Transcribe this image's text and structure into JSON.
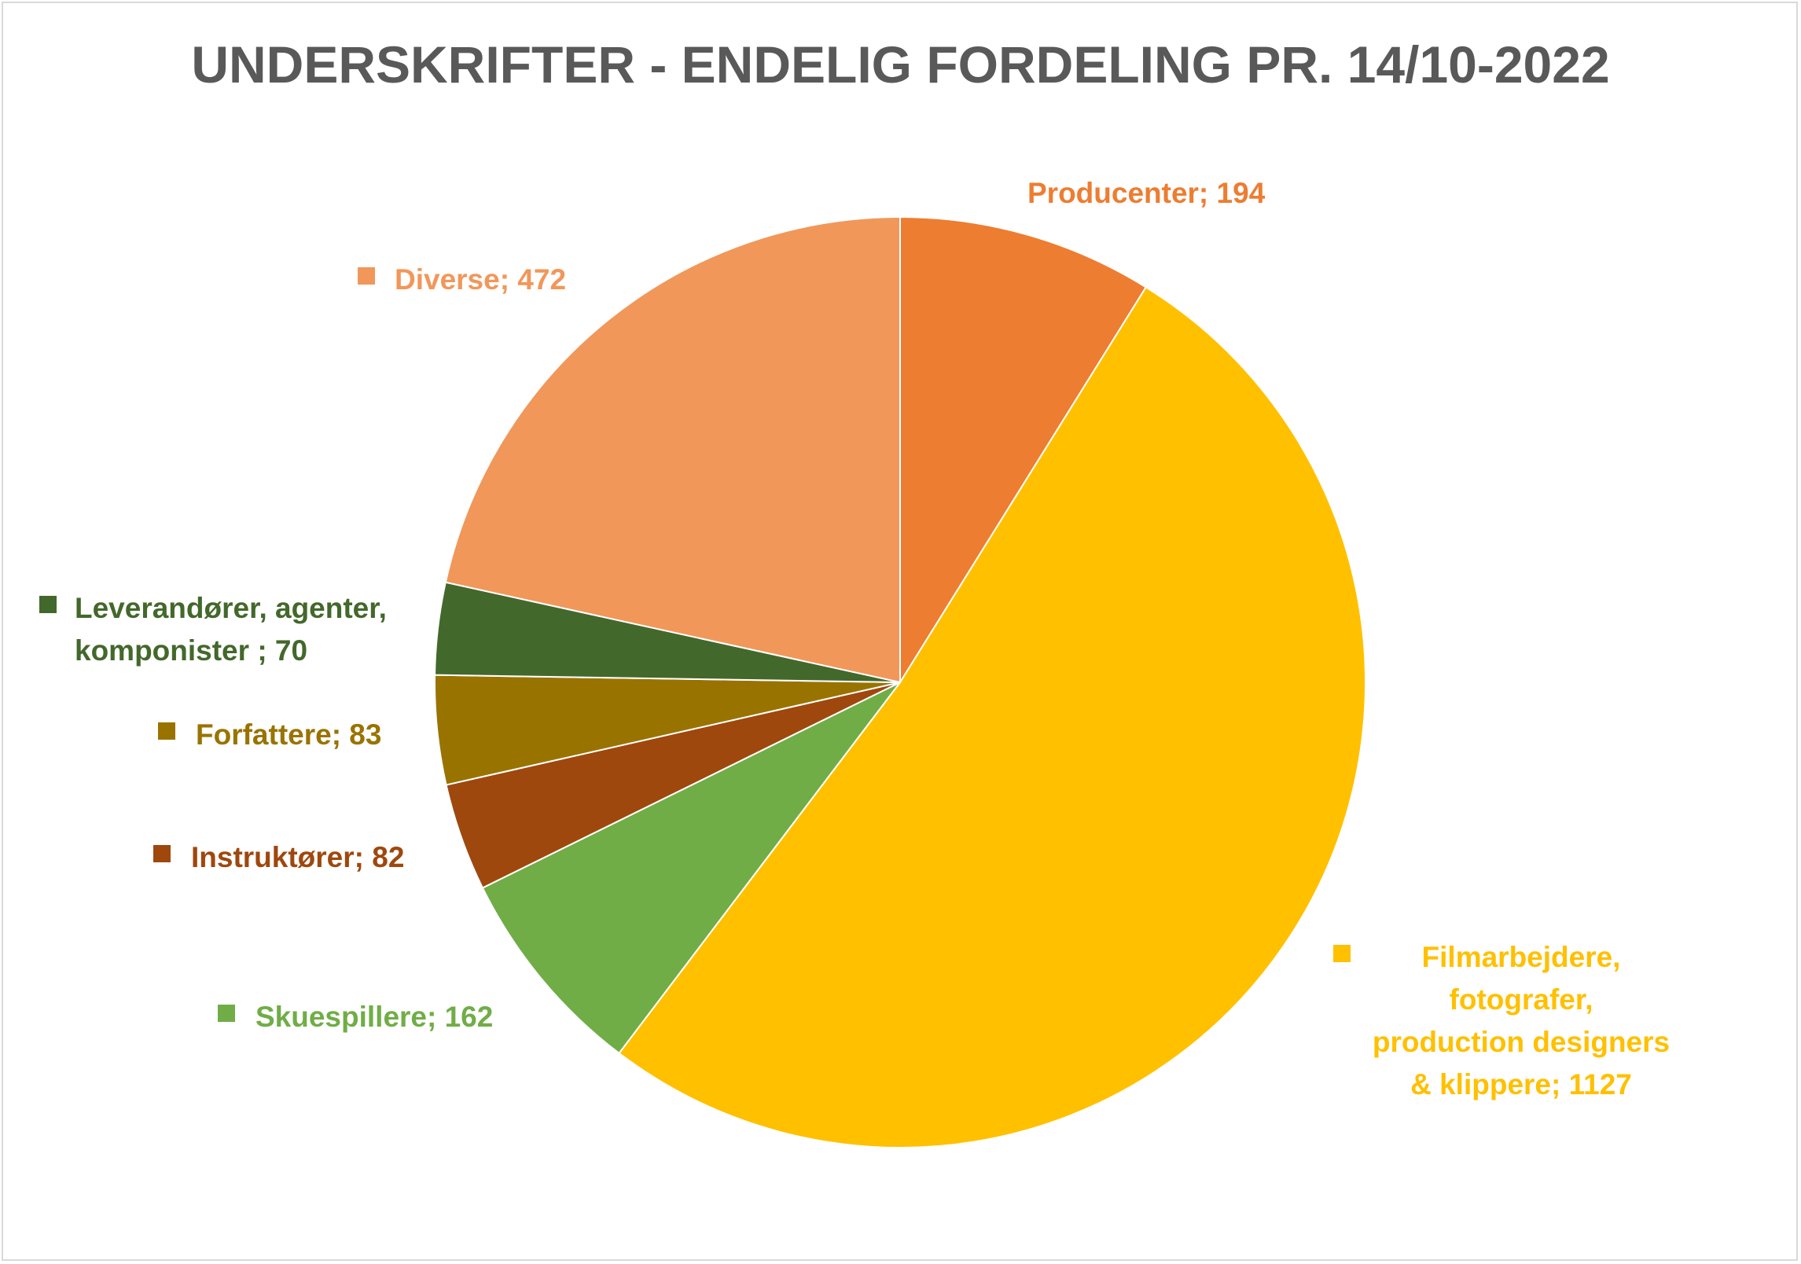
{
  "chart_data": {
    "type": "pie",
    "title": "UNDERSKRIFTER - ENDELIG FORDELING PR. 14/10-2022",
    "start_angle_deg": 0,
    "direction": "clockwise",
    "slices": [
      {
        "category": "Producenter",
        "value": 194,
        "label": "Producenter; 194",
        "label_lines": [
          "Producenter; 194"
        ],
        "color": "#ED7D31",
        "label_color": "#ED7D31",
        "marker": false
      },
      {
        "category": "Filmarbejdere, fotografer, production designers & klippere",
        "value": 1127,
        "label": "Filmarbejdere, fotografer, production designers & klippere; 1127",
        "label_lines": [
          "Filmarbejdere,",
          "fotografer,",
          "production designers",
          "& klippere; 1127"
        ],
        "color": "#FFC000",
        "label_color": "#FFC000",
        "marker": true
      },
      {
        "category": "Skuespillere",
        "value": 162,
        "label": "Skuespillere; 162",
        "label_lines": [
          "Skuespillere; 162"
        ],
        "color": "#70AD47",
        "label_color": "#70AD47",
        "marker": true
      },
      {
        "category": "Instruktører",
        "value": 82,
        "label": "Instruktører; 82",
        "label_lines": [
          "Instruktører; 82"
        ],
        "color": "#9E480E",
        "label_color": "#9E480E",
        "marker": true
      },
      {
        "category": "Forfattere",
        "value": 83,
        "label": "Forfattere; 83",
        "label_lines": [
          "Forfattere; 83"
        ],
        "color": "#997300",
        "label_color": "#997300",
        "marker": true
      },
      {
        "category": "Leverandører, agenter, komponister",
        "value": 70,
        "label": "Leverandører, agenter, komponister ; 70",
        "label_lines": [
          "Leverandører, agenter,",
          "komponister ; 70"
        ],
        "color": "#43682B",
        "label_color": "#43682B",
        "marker": true
      },
      {
        "category": "Diverse",
        "value": 472,
        "label": "Diverse; 472",
        "label_lines": [
          "Diverse; 472"
        ],
        "color": "#F1975A",
        "label_color": "#F1975A",
        "marker": true
      }
    ]
  }
}
